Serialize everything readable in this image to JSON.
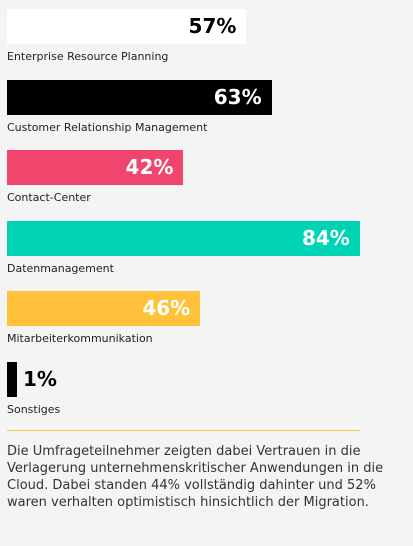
{
  "chart_data": {
    "type": "bar",
    "orientation": "horizontal",
    "categories": [
      "Enterprise Resource Planning",
      "Customer Relationship Management",
      "Contact-Center",
      "Datenmanagement",
      "Mitarbeiterkommunikation",
      "Sonstiges"
    ],
    "values": [
      57,
      63,
      42,
      84,
      46,
      1
    ],
    "value_labels": [
      "57%",
      "63%",
      "42%",
      "84%",
      "46%",
      "1%"
    ],
    "unit": "%",
    "xlim": [
      0,
      100
    ],
    "colors": [
      "#ffffff",
      "#000000",
      "#f0466e",
      "#00d4b4",
      "#ffc23a",
      "#000000"
    ],
    "value_label_colors": [
      "#000000",
      "#ffffff",
      "#ffffff",
      "#ffffff",
      "#ffffff",
      "#000000"
    ],
    "value_label_position": [
      "inside",
      "inside",
      "inside",
      "inside",
      "inside",
      "outside"
    ],
    "title": "",
    "xlabel": "",
    "ylabel": "",
    "grid": false,
    "legend": "none"
  },
  "footnote": "Die Umfrageteilnehmer zeigten dabei Vertrauen in die Verlagerung unternehmenskritischer Anwendungen in die Cloud. Dabei standen 44% vollständig dahinter und 52% waren verhalten optimistisch hinsichtlich der Migration.",
  "colors": {
    "divider": "#f5c842",
    "background": "#f4f4f4"
  }
}
